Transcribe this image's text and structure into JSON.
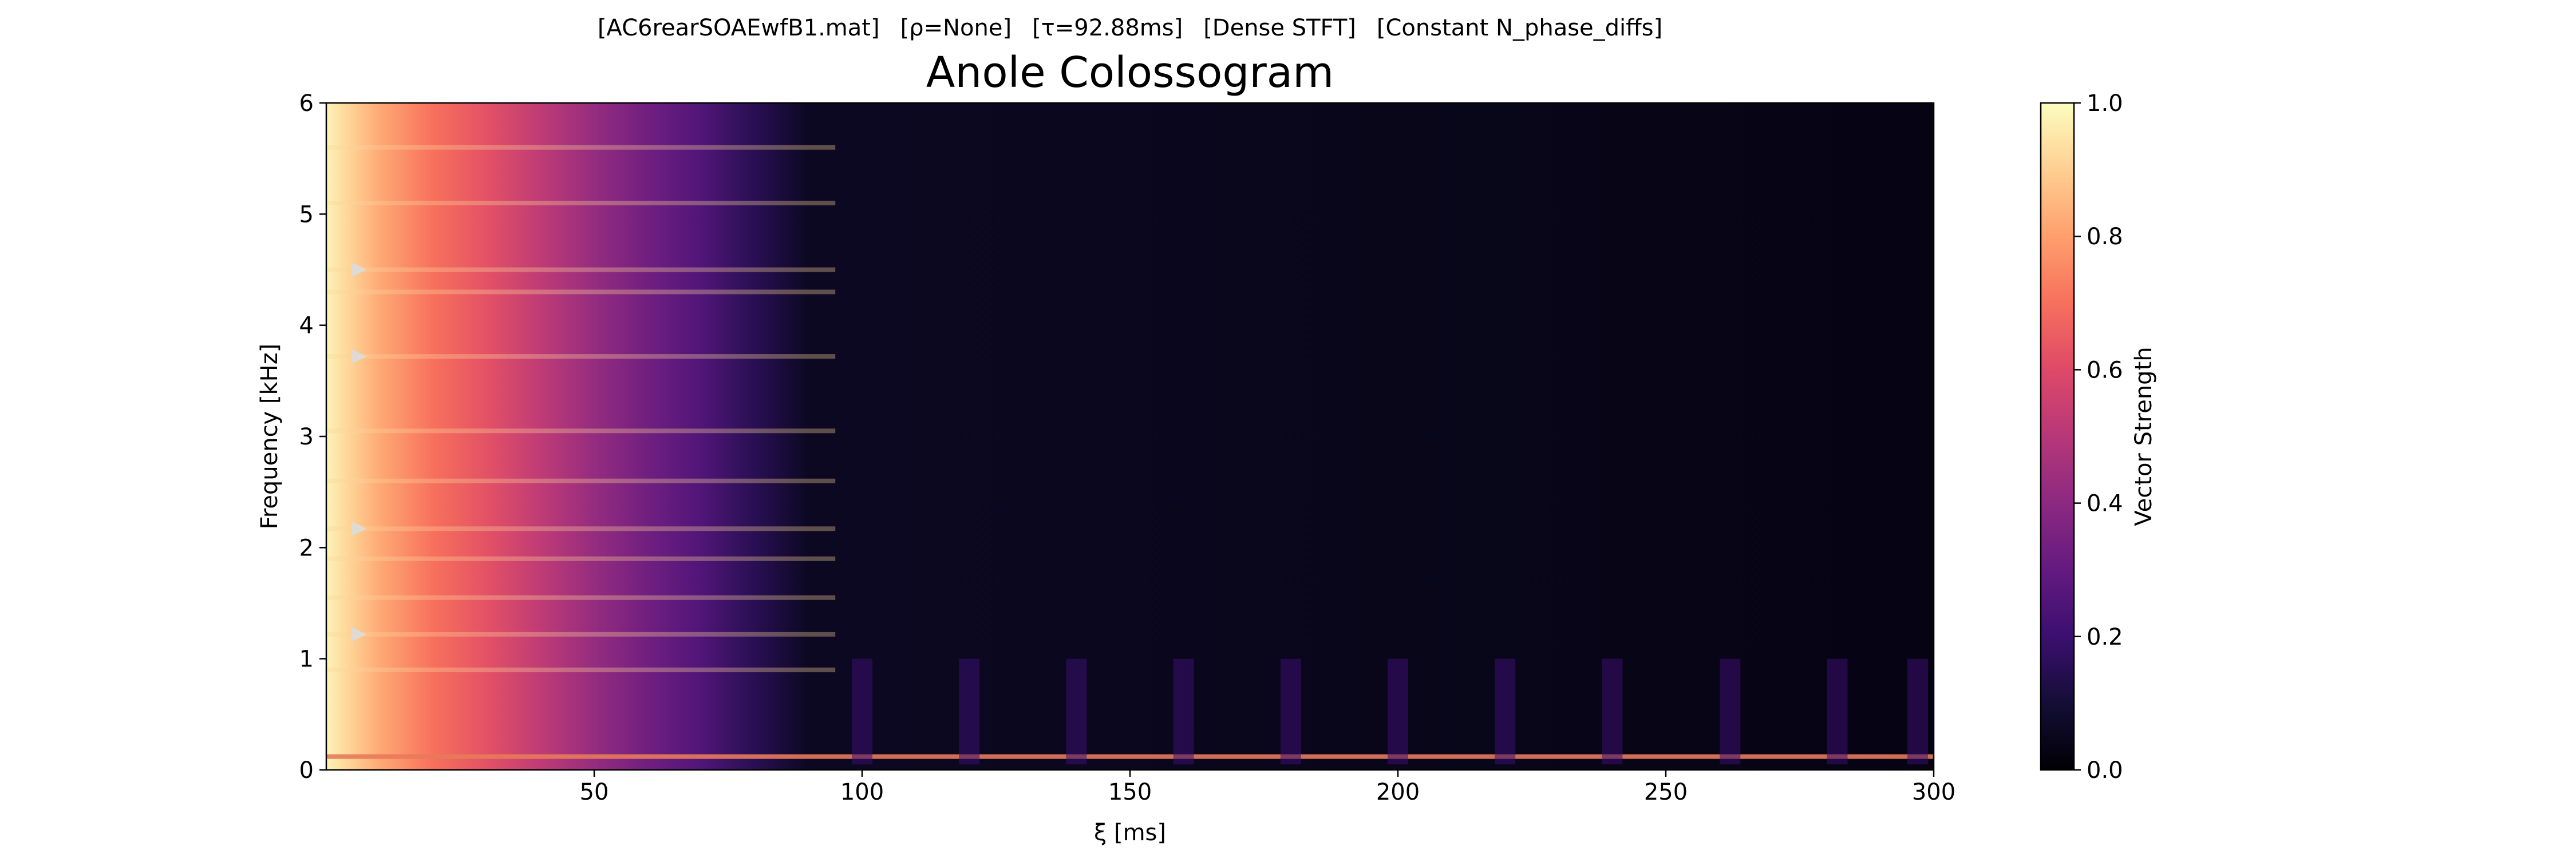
{
  "chart_data": {
    "type": "heatmap",
    "title": "Anole Colossogram",
    "subtitle_parts": [
      "[AC6rearSOAEwfB1.mat]",
      "[ρ=None]",
      "[τ=92.88ms]",
      "[Dense STFT]",
      "[Constant N_phase_diffs]"
    ],
    "xlabel": "ξ [ms]",
    "ylabel": "Frequency [kHz]",
    "colorbar_label": "Vector Strength",
    "xlim": [
      0,
      300
    ],
    "ylim": [
      0,
      6
    ],
    "clim": [
      0,
      1
    ],
    "colormap": "magma",
    "x_ticks": [
      50,
      100,
      150,
      200,
      250,
      300
    ],
    "y_ticks": [
      0,
      1,
      2,
      3,
      4,
      5,
      6
    ],
    "colorbar_ticks": [
      0.0,
      0.2,
      0.4,
      0.6,
      0.8,
      1.0
    ],
    "x_tick_labels": [
      "50",
      "100",
      "150",
      "200",
      "250",
      "300"
    ],
    "y_tick_labels": [
      "0",
      "1",
      "2",
      "3",
      "4",
      "5",
      "6"
    ],
    "colorbar_tick_labels": [
      "0.0",
      "0.2",
      "0.4",
      "0.6",
      "0.8",
      "1.0"
    ],
    "markers": {
      "shape": "triangle-right",
      "color": "#dcdcdc",
      "points": [
        {
          "x": 6,
          "y": 4.5
        },
        {
          "x": 6,
          "y": 3.72
        },
        {
          "x": 6,
          "y": 2.17
        },
        {
          "x": 6,
          "y": 1.22
        }
      ]
    },
    "decay_profile": {
      "x": [
        0,
        5,
        10,
        20,
        30,
        40,
        50,
        60,
        70,
        80,
        90,
        300
      ],
      "vector_strength": [
        0.98,
        0.9,
        0.82,
        0.7,
        0.62,
        0.52,
        0.42,
        0.33,
        0.25,
        0.15,
        0.06,
        0.03
      ]
    },
    "persistent_bands_khz": [
      0.12,
      0.9,
      1.22,
      1.55,
      1.9,
      2.17,
      2.6,
      3.05,
      3.72,
      4.3,
      4.5,
      5.1,
      5.6
    ],
    "low_freq_pulses": {
      "x_centers": [
        100,
        120,
        140,
        160,
        180,
        200,
        220,
        240,
        262,
        282,
        297
      ],
      "vector_strength": 0.2
    }
  }
}
